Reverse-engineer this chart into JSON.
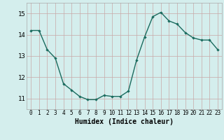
{
  "x": [
    0,
    1,
    2,
    3,
    4,
    5,
    6,
    7,
    8,
    9,
    10,
    11,
    12,
    13,
    14,
    15,
    16,
    17,
    18,
    19,
    20,
    21,
    22,
    23
  ],
  "y": [
    14.2,
    14.2,
    13.3,
    12.9,
    11.7,
    11.4,
    11.1,
    10.95,
    10.95,
    11.15,
    11.1,
    11.1,
    11.35,
    12.8,
    13.9,
    14.85,
    15.05,
    14.65,
    14.5,
    14.1,
    13.85,
    13.75,
    13.75,
    13.3
  ],
  "line_color": "#1a6b5e",
  "marker": "D",
  "marker_size": 2.2,
  "bg_color": "#d4eeed",
  "grid_color_v": "#c8a8a8",
  "grid_color_h": "#c8a8a8",
  "xlabel": "Humidex (Indice chaleur)",
  "ylim": [
    10.5,
    15.5
  ],
  "xlim": [
    -0.5,
    23.5
  ],
  "yticks": [
    11,
    12,
    13,
    14,
    15
  ],
  "xticks": [
    0,
    1,
    2,
    3,
    4,
    5,
    6,
    7,
    8,
    9,
    10,
    11,
    12,
    13,
    14,
    15,
    16,
    17,
    18,
    19,
    20,
    21,
    22,
    23
  ],
  "tick_fontsize": 5.5,
  "xlabel_fontsize": 7.0,
  "linewidth": 1.0
}
